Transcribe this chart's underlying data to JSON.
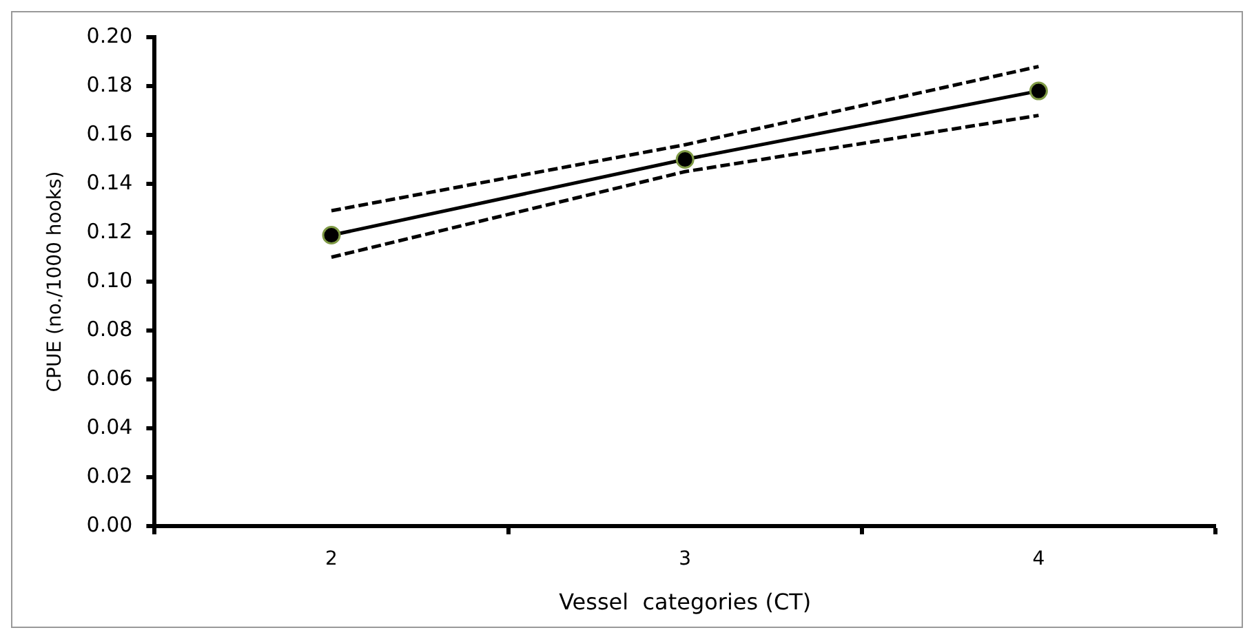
{
  "chart_data": {
    "type": "line",
    "xlabel": "Vessel  categories (CT)",
    "ylabel": "CPUE (no./1000 hooks)",
    "categories": [
      "2",
      "3",
      "4"
    ],
    "series": [
      {
        "color": "#000000",
        "values": [
          0.129,
          0.156,
          0.188
        ],
        "line_style": "dashed",
        "marker": "none"
      },
      {
        "color": "#000000",
        "values": [
          0.119,
          0.15,
          0.178
        ],
        "line_style": "solid",
        "marker": "circle"
      },
      {
        "color": "#000000",
        "values": [
          0.11,
          0.145,
          0.168
        ],
        "line_style": "dashed",
        "marker": "none"
      }
    ],
    "ylim": [
      0,
      0.2
    ],
    "yticks": [
      {
        "value": 0,
        "label": "0.00"
      },
      {
        "value": 0.02,
        "label": "0.02"
      },
      {
        "value": 0.04,
        "label": "0.04"
      },
      {
        "value": 0.06,
        "label": "0.06"
      },
      {
        "value": 0.08,
        "label": "0.08"
      },
      {
        "value": 0.1,
        "label": "0.10"
      },
      {
        "value": 0.12,
        "label": "0.12"
      },
      {
        "value": 0.14,
        "label": "0.14"
      },
      {
        "value": 0.16,
        "label": "0.16"
      },
      {
        "value": 0.18,
        "label": "0.18"
      },
      {
        "value": 0.2,
        "label": "0.20"
      }
    ],
    "grid": false,
    "legend": false
  }
}
